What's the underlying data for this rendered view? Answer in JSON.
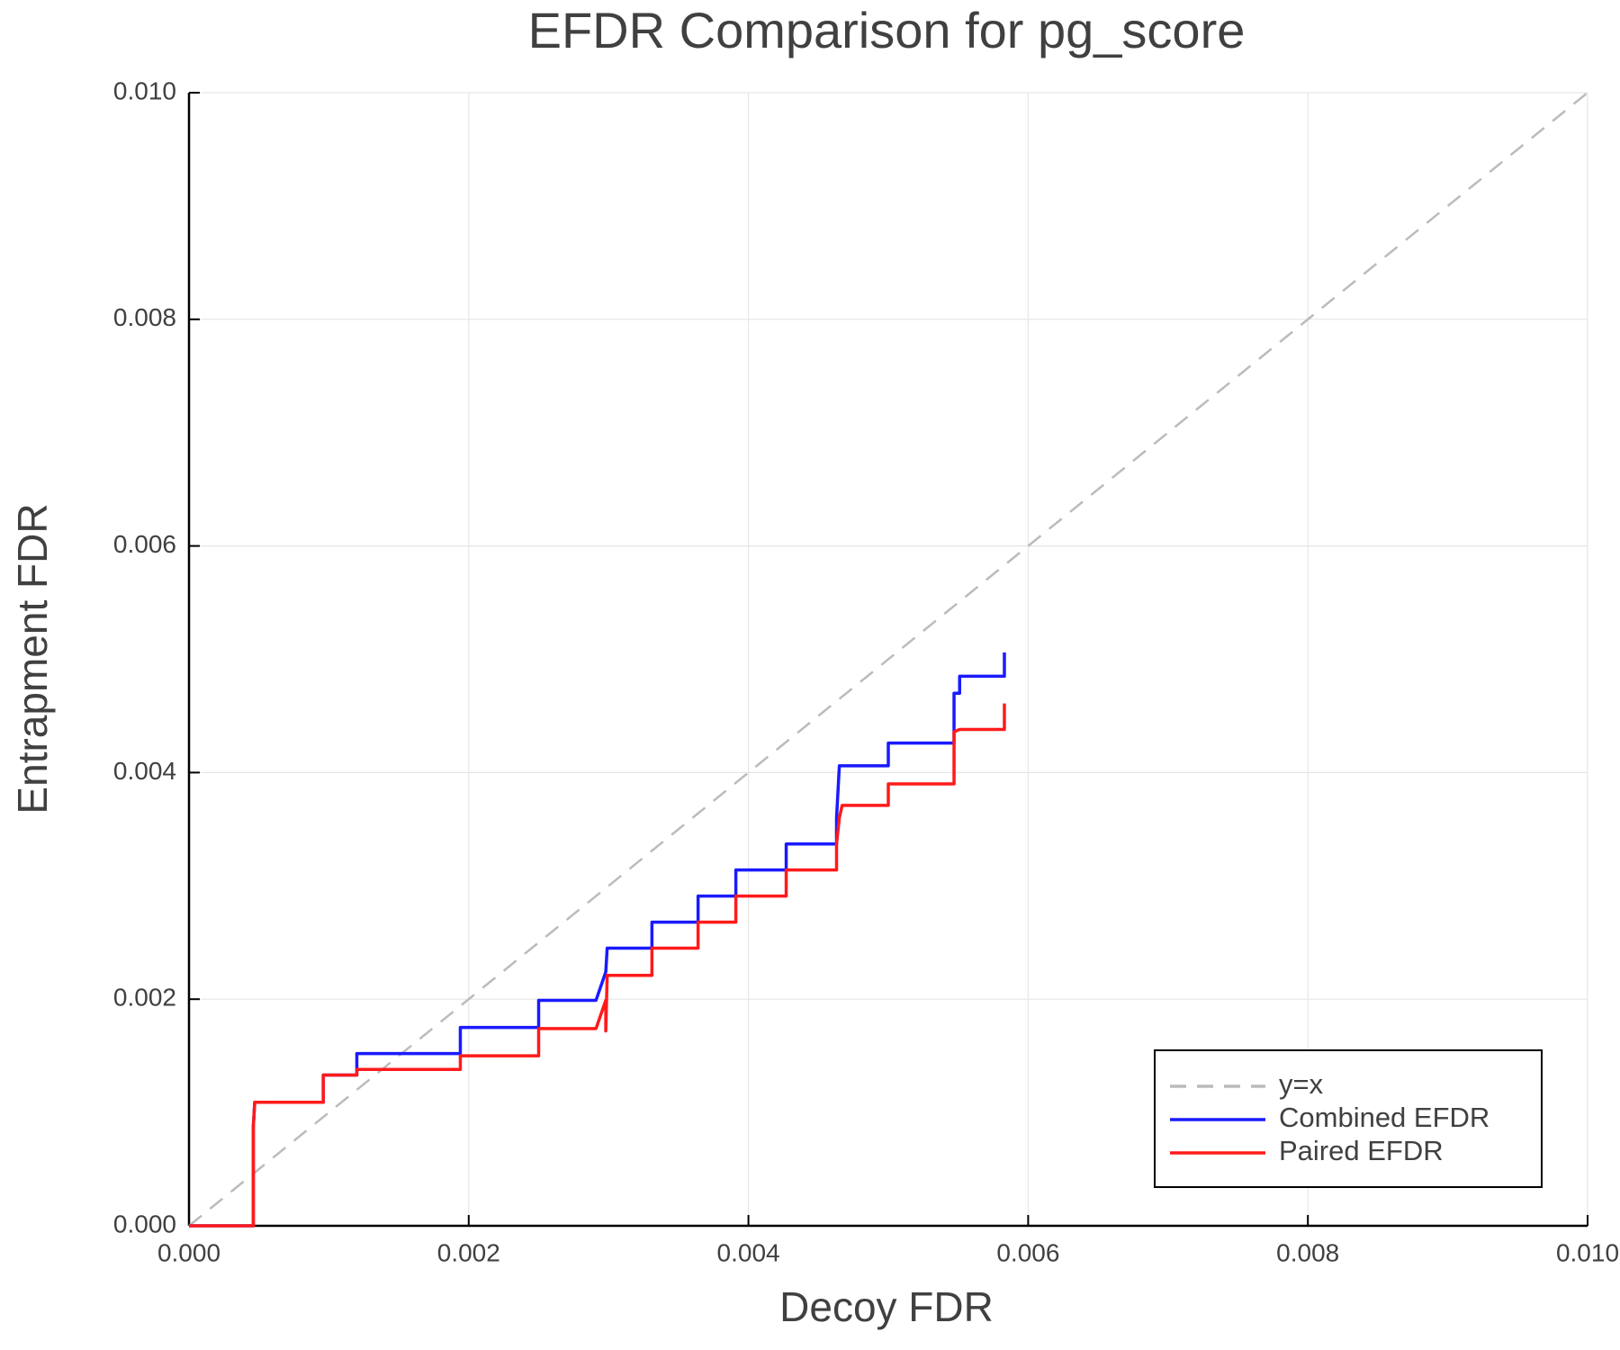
{
  "chart_data": {
    "type": "line",
    "title": "EFDR Comparison for pg_score",
    "x_label": "Decoy FDR",
    "y_label": "Entrapment FDR",
    "xlim": [
      0,
      0.01
    ],
    "ylim": [
      0,
      0.01
    ],
    "xticks": [
      {
        "value": 0,
        "label": "0.000"
      },
      {
        "value": 0.002,
        "label": "0.002"
      },
      {
        "value": 0.004,
        "label": "0.004"
      },
      {
        "value": 0.006,
        "label": "0.006"
      },
      {
        "value": 0.008,
        "label": "0.008"
      },
      {
        "value": 0.01,
        "label": "0.010"
      }
    ],
    "yticks": [
      {
        "value": 0,
        "label": "0.000"
      },
      {
        "value": 0.002,
        "label": "0.002"
      },
      {
        "value": 0.004,
        "label": "0.004"
      },
      {
        "value": 0.006,
        "label": "0.006"
      },
      {
        "value": 0.008,
        "label": "0.008"
      },
      {
        "value": 0.01,
        "label": "0.010"
      }
    ],
    "grid": true,
    "legend": "lower right",
    "series": [
      {
        "name": "y=x",
        "color": "#bbbbbb",
        "dashed": true,
        "x": [
          0,
          0.01
        ],
        "values": [
          0,
          0.01
        ]
      },
      {
        "name": "Combined EFDR",
        "color": "#1a1aff",
        "dashed": false,
        "x": [
          0,
          0.00046,
          0.00046,
          0.00047,
          0.00096,
          0.00096,
          0.0012,
          0.0012,
          0.00194,
          0.00194,
          0.0025,
          0.0025,
          0.00291,
          0.00298,
          0.00299,
          0.00331,
          0.00331,
          0.00364,
          0.00364,
          0.00391,
          0.00391,
          0.00427,
          0.00427,
          0.00463,
          0.00463,
          0.00465,
          0.005,
          0.005,
          0.00547,
          0.00547,
          0.00551,
          0.00551,
          0.00583,
          0.00583
        ],
        "values": [
          0,
          0,
          0.00088,
          0.00109,
          0.00109,
          0.00133,
          0.00133,
          0.00152,
          0.00152,
          0.00175,
          0.00175,
          0.00199,
          0.00199,
          0.00224,
          0.00245,
          0.00245,
          0.00268,
          0.00268,
          0.00291,
          0.00291,
          0.00314,
          0.00314,
          0.00337,
          0.00337,
          0.0036,
          0.00406,
          0.00406,
          0.00426,
          0.00426,
          0.0047,
          0.0047,
          0.00485,
          0.00485,
          0.00506
        ]
      },
      {
        "name": "Paired EFDR",
        "color": "#ff1a1a",
        "dashed": false,
        "x": [
          0,
          0.00046,
          0.00046,
          0.00047,
          0.00096,
          0.00096,
          0.0012,
          0.0012,
          0.00194,
          0.00194,
          0.0025,
          0.0025,
          0.00291,
          0.00298,
          0.00298,
          0.00299,
          0.00331,
          0.00331,
          0.00364,
          0.00364,
          0.00391,
          0.00391,
          0.00427,
          0.00427,
          0.00463,
          0.00463,
          0.00465,
          0.00467,
          0.005,
          0.005,
          0.00547,
          0.00547,
          0.00551,
          0.00583,
          0.00583
        ],
        "values": [
          0,
          0,
          0.00088,
          0.00109,
          0.00109,
          0.00133,
          0.00133,
          0.00138,
          0.00138,
          0.0015,
          0.0015,
          0.00174,
          0.00174,
          0.00199,
          0.00172,
          0.00221,
          0.00221,
          0.00245,
          0.00245,
          0.00268,
          0.00268,
          0.00291,
          0.00291,
          0.00314,
          0.00314,
          0.00337,
          0.0036,
          0.00371,
          0.00371,
          0.0039,
          0.0039,
          0.00436,
          0.00438,
          0.00438,
          0.00461
        ]
      }
    ]
  }
}
